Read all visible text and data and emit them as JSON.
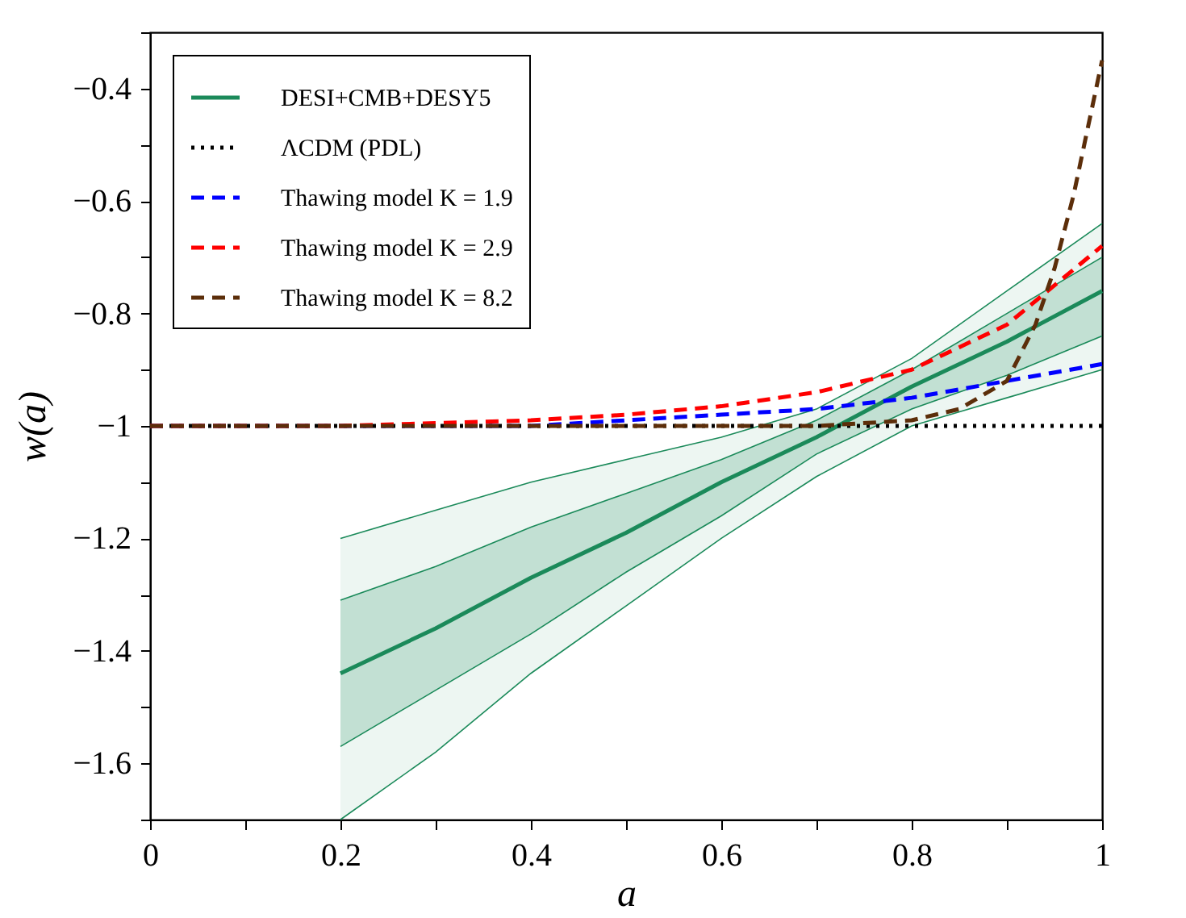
{
  "chart_data": {
    "type": "line",
    "xlabel": "a",
    "ylabel": "w(a)",
    "xlim": [
      0,
      1
    ],
    "ylim": [
      -1.7,
      -0.3
    ],
    "xticks": [
      0,
      {
        "value": 0.1,
        "label": null
      },
      0.2,
      {
        "value": 0.3,
        "label": null
      },
      0.4,
      {
        "value": 0.5,
        "label": null
      },
      0.6,
      {
        "value": 0.7,
        "label": null
      },
      0.8,
      {
        "value": 0.9,
        "label": null
      },
      1
    ],
    "yticks": [
      {
        "value": -1.7,
        "label": null
      },
      {
        "value": -1.6,
        "label": "−1.6"
      },
      {
        "value": -1.5,
        "label": null
      },
      {
        "value": -1.4,
        "label": "−1.4"
      },
      {
        "value": -1.3,
        "label": null
      },
      {
        "value": -1.2,
        "label": "−1.2"
      },
      {
        "value": -1.1,
        "label": null
      },
      {
        "value": -1,
        "label": "−1"
      },
      {
        "value": -0.9,
        "label": null
      },
      {
        "value": -0.8,
        "label": "−0.8"
      },
      {
        "value": -0.7,
        "label": null
      },
      {
        "value": -0.6,
        "label": "−0.6"
      },
      {
        "value": -0.5,
        "label": null
      },
      {
        "value": -0.4,
        "label": "−0.4"
      },
      {
        "value": -0.3,
        "label": null
      }
    ],
    "grid": false,
    "legend": "top left",
    "series": [
      {
        "color": "#1b8a5a",
        "x": [
          0.2,
          0.3,
          0.4,
          0.5,
          0.6,
          0.7,
          0.8,
          0.9,
          1
        ],
        "values": [
          -1.2,
          -1.15,
          -1.1,
          -1.06,
          -1.02,
          -0.97,
          -0.88,
          -0.76,
          -0.64
        ],
        "lower": [
          -1.7,
          -1.58,
          -1.44,
          -1.32,
          -1.2,
          -1.09,
          -1.0,
          -0.95,
          -0.9
        ],
        "upper": [
          -1.2,
          -1.15,
          -1.1,
          -1.06,
          -1.02,
          -0.97,
          -0.88,
          -0.76,
          -0.64
        ]
      },
      {
        "color": "#1b8a5a",
        "x": [
          0.2,
          0.3,
          0.4,
          0.5,
          0.6,
          0.7,
          0.8,
          0.9,
          1
        ],
        "values": [
          -1.7,
          -1.58,
          -1.44,
          -1.32,
          -1.2,
          -1.09,
          -1.0,
          -0.95,
          -0.9
        ]
      },
      {
        "color": "#1b8a5a",
        "x": [
          0.2,
          0.3,
          0.4,
          0.5,
          0.6,
          0.7,
          0.8,
          0.9,
          1
        ],
        "values": [
          -1.57,
          -1.47,
          -1.37,
          -1.26,
          -1.16,
          -1.05,
          -0.97,
          -0.91,
          -0.84
        ]
      },
      {
        "color": "#1b8a5a",
        "x": [
          0.2,
          0.3,
          0.4,
          0.5,
          0.6,
          0.7,
          0.8,
          0.9,
          1
        ],
        "values": [
          -1.31,
          -1.25,
          -1.18,
          -1.12,
          -1.06,
          -0.99,
          -0.9,
          -0.8,
          -0.7
        ]
      },
      {
        "name": "DESI+CMB+DESY5",
        "color": "#1b8a5a",
        "line_style": "solid",
        "x": [
          0.2,
          0.3,
          0.4,
          0.5,
          0.6,
          0.7,
          0.8,
          0.9,
          1
        ],
        "values": [
          -1.44,
          -1.36,
          -1.27,
          -1.19,
          -1.1,
          -1.02,
          -0.93,
          -0.85,
          -0.76
        ],
        "lower": [
          -1.57,
          -1.47,
          -1.37,
          -1.26,
          -1.16,
          -1.05,
          -0.97,
          -0.91,
          -0.84
        ],
        "upper": [
          -1.31,
          -1.25,
          -1.18,
          -1.12,
          -1.06,
          -0.99,
          -0.9,
          -0.8,
          -0.7
        ]
      },
      {
        "name": "ΛCDM (PDL)",
        "color": "#000000",
        "line_style": "dotted",
        "x": [
          0,
          1
        ],
        "values": [
          -1,
          -1
        ]
      },
      {
        "name": "Thawing model K = 1.9",
        "color": "#0000ff",
        "line_style": "dashed",
        "x": [
          0,
          0.2,
          0.4,
          0.5,
          0.6,
          0.7,
          0.8,
          0.9,
          1
        ],
        "values": [
          -1,
          -1,
          -1,
          -0.99,
          -0.98,
          -0.97,
          -0.95,
          -0.92,
          -0.89
        ]
      },
      {
        "name": "Thawing model K = 2.9",
        "color": "#ff0000",
        "line_style": "dashed",
        "x": [
          0,
          0.2,
          0.3,
          0.4,
          0.5,
          0.6,
          0.7,
          0.8,
          0.9,
          1
        ],
        "values": [
          -1,
          -1,
          -0.995,
          -0.99,
          -0.98,
          -0.965,
          -0.94,
          -0.9,
          -0.82,
          -0.68
        ]
      },
      {
        "name": "Thawing model K = 8.2",
        "color": "#5c2e0a",
        "line_style": "dashed",
        "x": [
          0,
          0.6,
          0.7,
          0.8,
          0.85,
          0.9,
          0.93,
          0.95,
          0.97,
          1
        ],
        "values": [
          -1,
          -1,
          -1,
          -0.99,
          -0.97,
          -0.92,
          -0.82,
          -0.72,
          -0.59,
          -0.35
        ]
      }
    ]
  }
}
